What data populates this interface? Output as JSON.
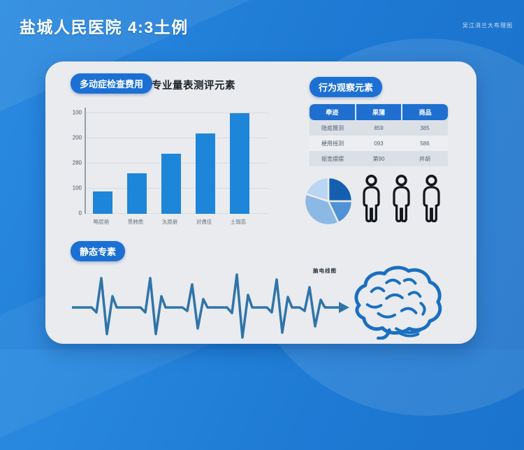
{
  "page": {
    "title": "盐城人民医院 4:3土例",
    "watermark": "吴江消兰大布理图"
  },
  "colors": {
    "background_blue": "#1d79d3",
    "card": "#e9ebef",
    "badge_blue": "#1c70d3",
    "bar_blue": "#1e86d8",
    "table_header_blue": "#1e6fd0",
    "ecg_blue": "#2f74a8",
    "brain_blue": "#1a6fc0",
    "person_outline": "#15181c"
  },
  "left_panel": {
    "badge_label": "多动症检查费用",
    "title": "专业量表测评元素"
  },
  "behavior_panel": {
    "badge_label": "行为观察元素",
    "person_count": 3
  },
  "static_panel": {
    "badge_label": "静态专素",
    "brain_label": "脑电线图"
  },
  "chart_data": [
    {
      "type": "bar",
      "title": "专业量表测评元素",
      "categories": [
        "略层艳",
        "景肺质",
        "汍原册",
        "对偶佳",
        "土瑕蕊"
      ],
      "values": [
        90,
        160,
        240,
        320,
        400
      ],
      "y_tick_labels_bottom_to_top": [
        "0",
        "100",
        "280",
        "200",
        "100"
      ],
      "ylim": [
        0,
        400
      ],
      "bar_color": "#1e86d8",
      "grid": true,
      "legend": "none"
    },
    {
      "type": "pie",
      "slices": [
        {
          "value": 25,
          "color": "#155fb0"
        },
        {
          "value": 18,
          "color": "#4f92d6"
        },
        {
          "value": 37,
          "color": "#8cb8e6"
        },
        {
          "value": 20,
          "color": "#b9d6f2"
        }
      ]
    },
    {
      "type": "table",
      "headers": [
        "牵迹",
        "果蒲",
        "商品"
      ],
      "rows": [
        [
          "隐庭摄测",
          "859",
          "385"
        ],
        [
          "梗用摇测",
          "093",
          "586"
        ],
        [
          "振宽摆摆",
          "第90",
          "井胡"
        ]
      ]
    }
  ]
}
